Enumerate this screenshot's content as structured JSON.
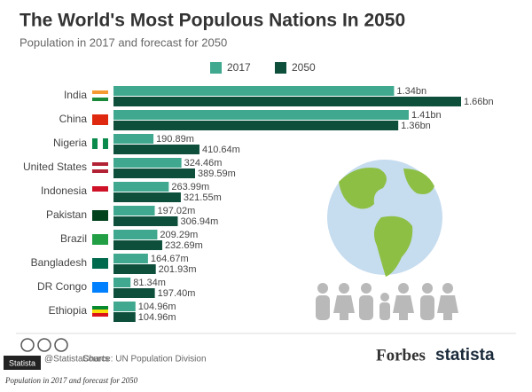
{
  "chart_data": {
    "type": "bar",
    "orientation": "horizontal",
    "title": "The World's Most Populous Nations In 2050",
    "subtitle": "Population in 2017 and forecast for 2050",
    "categories": [
      "India",
      "China",
      "Nigeria",
      "United States",
      "Indonesia",
      "Pakistan",
      "Brazil",
      "Bangladesh",
      "DR Congo",
      "Ethiopia"
    ],
    "series": [
      {
        "name": "2017",
        "color": "#3fa88e",
        "values": [
          1340,
          1410,
          190.89,
          324.46,
          263.99,
          197.02,
          209.29,
          164.67,
          81.34,
          104.96
        ],
        "value_labels": [
          "1.34bn",
          "1.41bn",
          "190.89m",
          "324.46m",
          "263.99m",
          "197.02m",
          "209.29m",
          "164.67m",
          "81.34m",
          "104.96m"
        ]
      },
      {
        "name": "2050",
        "color": "#0d4f3b",
        "values": [
          1660,
          1360,
          410.64,
          389.59,
          321.55,
          306.94,
          232.69,
          201.93,
          197.4,
          104.96
        ],
        "value_labels": [
          "1.66bn",
          "1.36bn",
          "410.64m",
          "389.59m",
          "321.55m",
          "306.94m",
          "232.69m",
          "201.93m",
          "197.40m",
          "104.96m"
        ]
      }
    ],
    "credit": "@StatistaCharts",
    "source": "Source: UN Population Division",
    "logos": [
      "Forbes",
      "statista"
    ],
    "badge": "Statista",
    "caption": "Population in 2017 and forecast for 2050"
  }
}
